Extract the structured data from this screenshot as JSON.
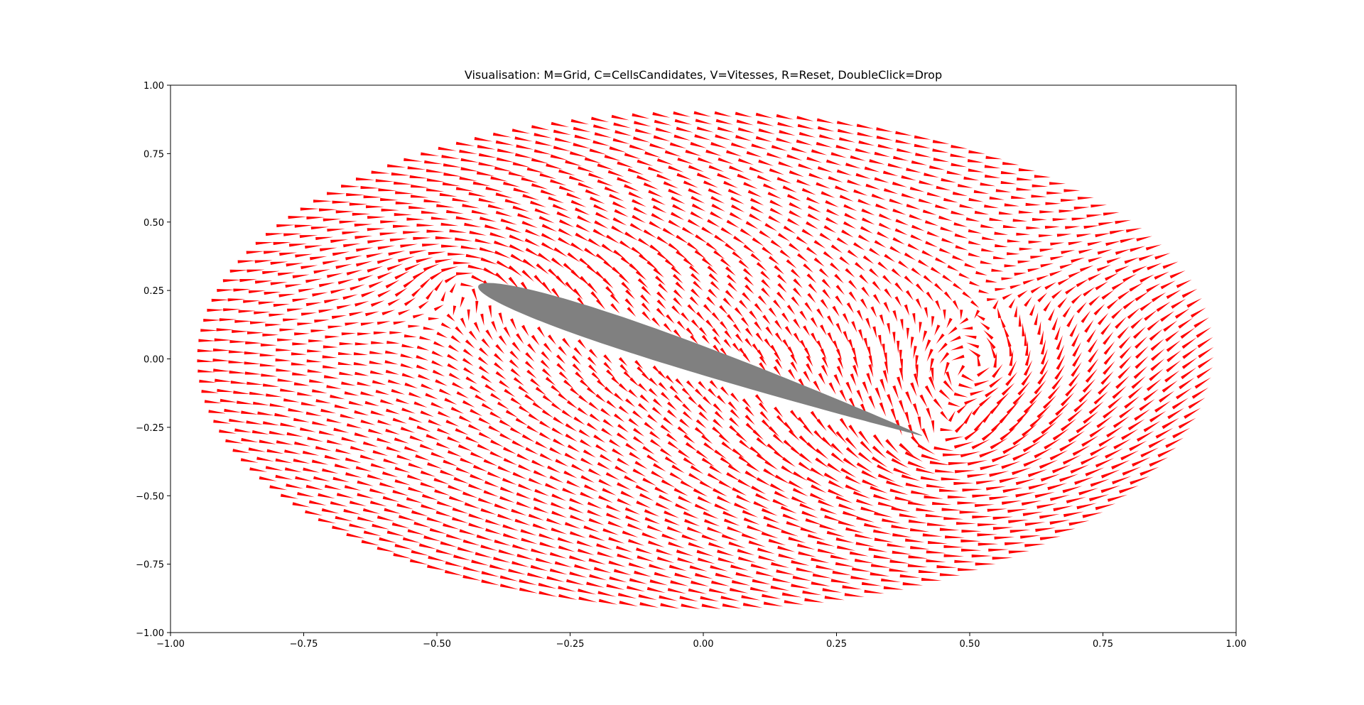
{
  "figure": {
    "background": "#ffffff"
  },
  "chart_data": {
    "type": "quiver",
    "title": "Visualisation: M=Grid, C=CellsCandidates, V=Vitesses, R=Reset, DoubleClick=Drop",
    "xlabel": "",
    "ylabel": "",
    "xlim": [
      -1.0,
      1.0
    ],
    "ylim": [
      -1.0,
      1.0
    ],
    "grid": false,
    "x_ticks": [
      -1.0,
      -0.75,
      -0.5,
      -0.25,
      0.0,
      0.25,
      0.5,
      0.75,
      1.0
    ],
    "x_tick_labels": [
      "−1.00",
      "−0.75",
      "−0.50",
      "−0.25",
      "0.00",
      "0.25",
      "0.50",
      "0.75",
      "1.00"
    ],
    "y_ticks": [
      1.0,
      0.75,
      0.5,
      0.25,
      0.0,
      -0.25,
      -0.5,
      -0.75,
      -1.0
    ],
    "y_tick_labels": [
      "1.00",
      "0.75",
      "0.50",
      "0.25",
      "0.00",
      "−0.25",
      "−0.50",
      "−0.75",
      "−1.00"
    ],
    "arrow_color": "#ff0000",
    "domain_ellipse": {
      "center": [
        -0.01,
        0.0
      ],
      "semi_axes": [
        0.94,
        0.9
      ]
    },
    "airfoil": {
      "color": "#808080",
      "leading_edge": [
        -0.42,
        0.27
      ],
      "trailing_edge": [
        0.41,
        -0.28
      ],
      "thickness_ratio": 0.1
    },
    "flow": {
      "freestream": [
        1.0,
        0.0
      ],
      "vortices": [
        {
          "center": [
            -0.45,
            0.28
          ],
          "strength": -0.35
        },
        {
          "center": [
            0.44,
            -0.28
          ],
          "strength": 0.55
        },
        {
          "center": [
            0.5,
            -0.04
          ],
          "strength": 0.4
        }
      ]
    }
  }
}
